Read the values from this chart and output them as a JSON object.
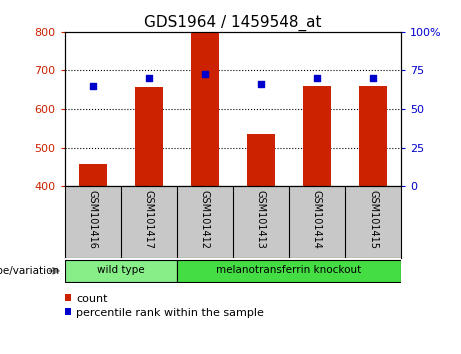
{
  "title": "GDS1964 / 1459548_at",
  "samples": [
    "GSM101416",
    "GSM101417",
    "GSM101412",
    "GSM101413",
    "GSM101414",
    "GSM101415"
  ],
  "bar_values": [
    457,
    657,
    797,
    535,
    660,
    660
  ],
  "percentile_values": [
    65,
    70,
    73,
    66,
    70,
    70
  ],
  "bar_color": "#cc2200",
  "percentile_color": "#0000cc",
  "ylim_left": [
    400,
    800
  ],
  "ylim_right": [
    0,
    100
  ],
  "yticks_left": [
    400,
    500,
    600,
    700,
    800
  ],
  "yticks_right": [
    0,
    25,
    50,
    75,
    100
  ],
  "ytick_right_labels": [
    "0",
    "25",
    "50",
    "75",
    "100%"
  ],
  "groups": [
    {
      "label": "wild type",
      "span": [
        0,
        1
      ],
      "color": "#88ee88"
    },
    {
      "label": "melanotransferrin knockout",
      "span": [
        2,
        5
      ],
      "color": "#44dd44"
    }
  ],
  "genotype_label": "genotype/variation",
  "legend_count_label": "count",
  "legend_percentile_label": "percentile rank within the sample",
  "background_color": "#ffffff",
  "plot_bg_color": "#ffffff",
  "grid_color": "#000000",
  "tick_label_color_left": "#cc2200",
  "tick_label_color_right": "#0000cc",
  "bar_width": 0.5,
  "sample_bg_color": "#c8c8c8"
}
